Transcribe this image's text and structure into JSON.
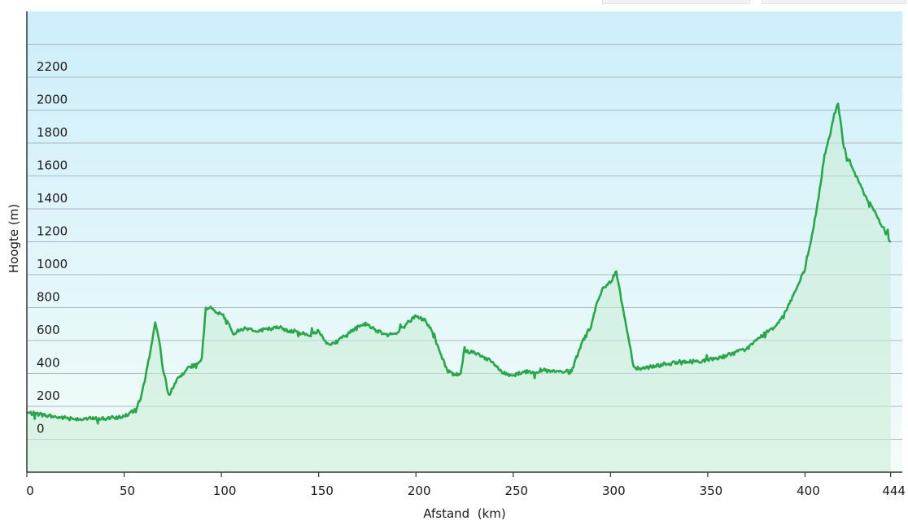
{
  "chart_data": {
    "type": "area",
    "title": "",
    "xlabel": "Afstand  (km)",
    "ylabel": "Hoogte (m)",
    "xlim": [
      0,
      450
    ],
    "ylim": [
      -200,
      2600
    ],
    "grid": true,
    "legend": "none",
    "x_ticks": [
      0,
      50,
      100,
      150,
      200,
      250,
      300,
      350,
      400,
      444
    ],
    "y_ticks": [
      0,
      200,
      400,
      600,
      800,
      1000,
      1200,
      1400,
      1600,
      1800,
      2000,
      2200
    ],
    "colors": {
      "line": "#26a84a",
      "fill": "#c9ecd6",
      "bg_top": "#cdeefb",
      "bg_bottom": "#f3fcf8",
      "grid": "#a9b8c4",
      "axis": "#333333"
    },
    "series": [
      {
        "x": [
          0,
          5,
          10,
          15,
          20,
          25,
          30,
          35,
          40,
          45,
          50,
          55,
          58,
          61,
          64,
          66,
          68,
          70,
          73,
          76,
          80,
          84,
          88,
          90,
          92,
          94,
          97,
          100,
          103,
          106,
          110,
          115,
          120,
          125,
          130,
          135,
          140,
          145,
          150,
          153,
          156,
          160,
          165,
          170,
          175,
          180,
          185,
          190,
          195,
          200,
          205,
          208,
          212,
          216,
          220,
          223,
          225,
          226,
          230,
          235,
          240,
          245,
          250,
          255,
          260,
          265,
          270,
          275,
          280,
          285,
          290,
          293,
          296,
          300,
          303,
          306,
          309,
          312,
          315,
          320,
          330,
          340,
          350,
          360,
          370,
          375,
          380,
          385,
          390,
          395,
          400,
          403,
          406,
          408,
          410,
          413,
          415,
          417,
          420,
          425,
          430,
          435,
          440,
          444
        ],
        "y": [
          160,
          155,
          145,
          135,
          130,
          125,
          125,
          125,
          125,
          130,
          140,
          170,
          230,
          380,
          570,
          710,
          600,
          420,
          270,
          340,
          400,
          440,
          460,
          500,
          800,
          800,
          770,
          760,
          720,
          640,
          670,
          670,
          660,
          670,
          680,
          660,
          650,
          630,
          660,
          600,
          575,
          600,
          640,
          690,
          700,
          660,
          640,
          640,
          700,
          750,
          720,
          660,
          540,
          420,
          390,
          400,
          560,
          530,
          530,
          500,
          460,
          400,
          390,
          410,
          410,
          420,
          410,
          410,
          410,
          580,
          680,
          830,
          920,
          950,
          1020,
          820,
          630,
          440,
          430,
          440,
          460,
          470,
          480,
          510,
          550,
          600,
          650,
          690,
          780,
          900,
          1030,
          1200,
          1400,
          1550,
          1730,
          1850,
          1980,
          2040,
          1770,
          1630,
          1500,
          1400,
          1290,
          1200
        ]
      }
    ]
  }
}
